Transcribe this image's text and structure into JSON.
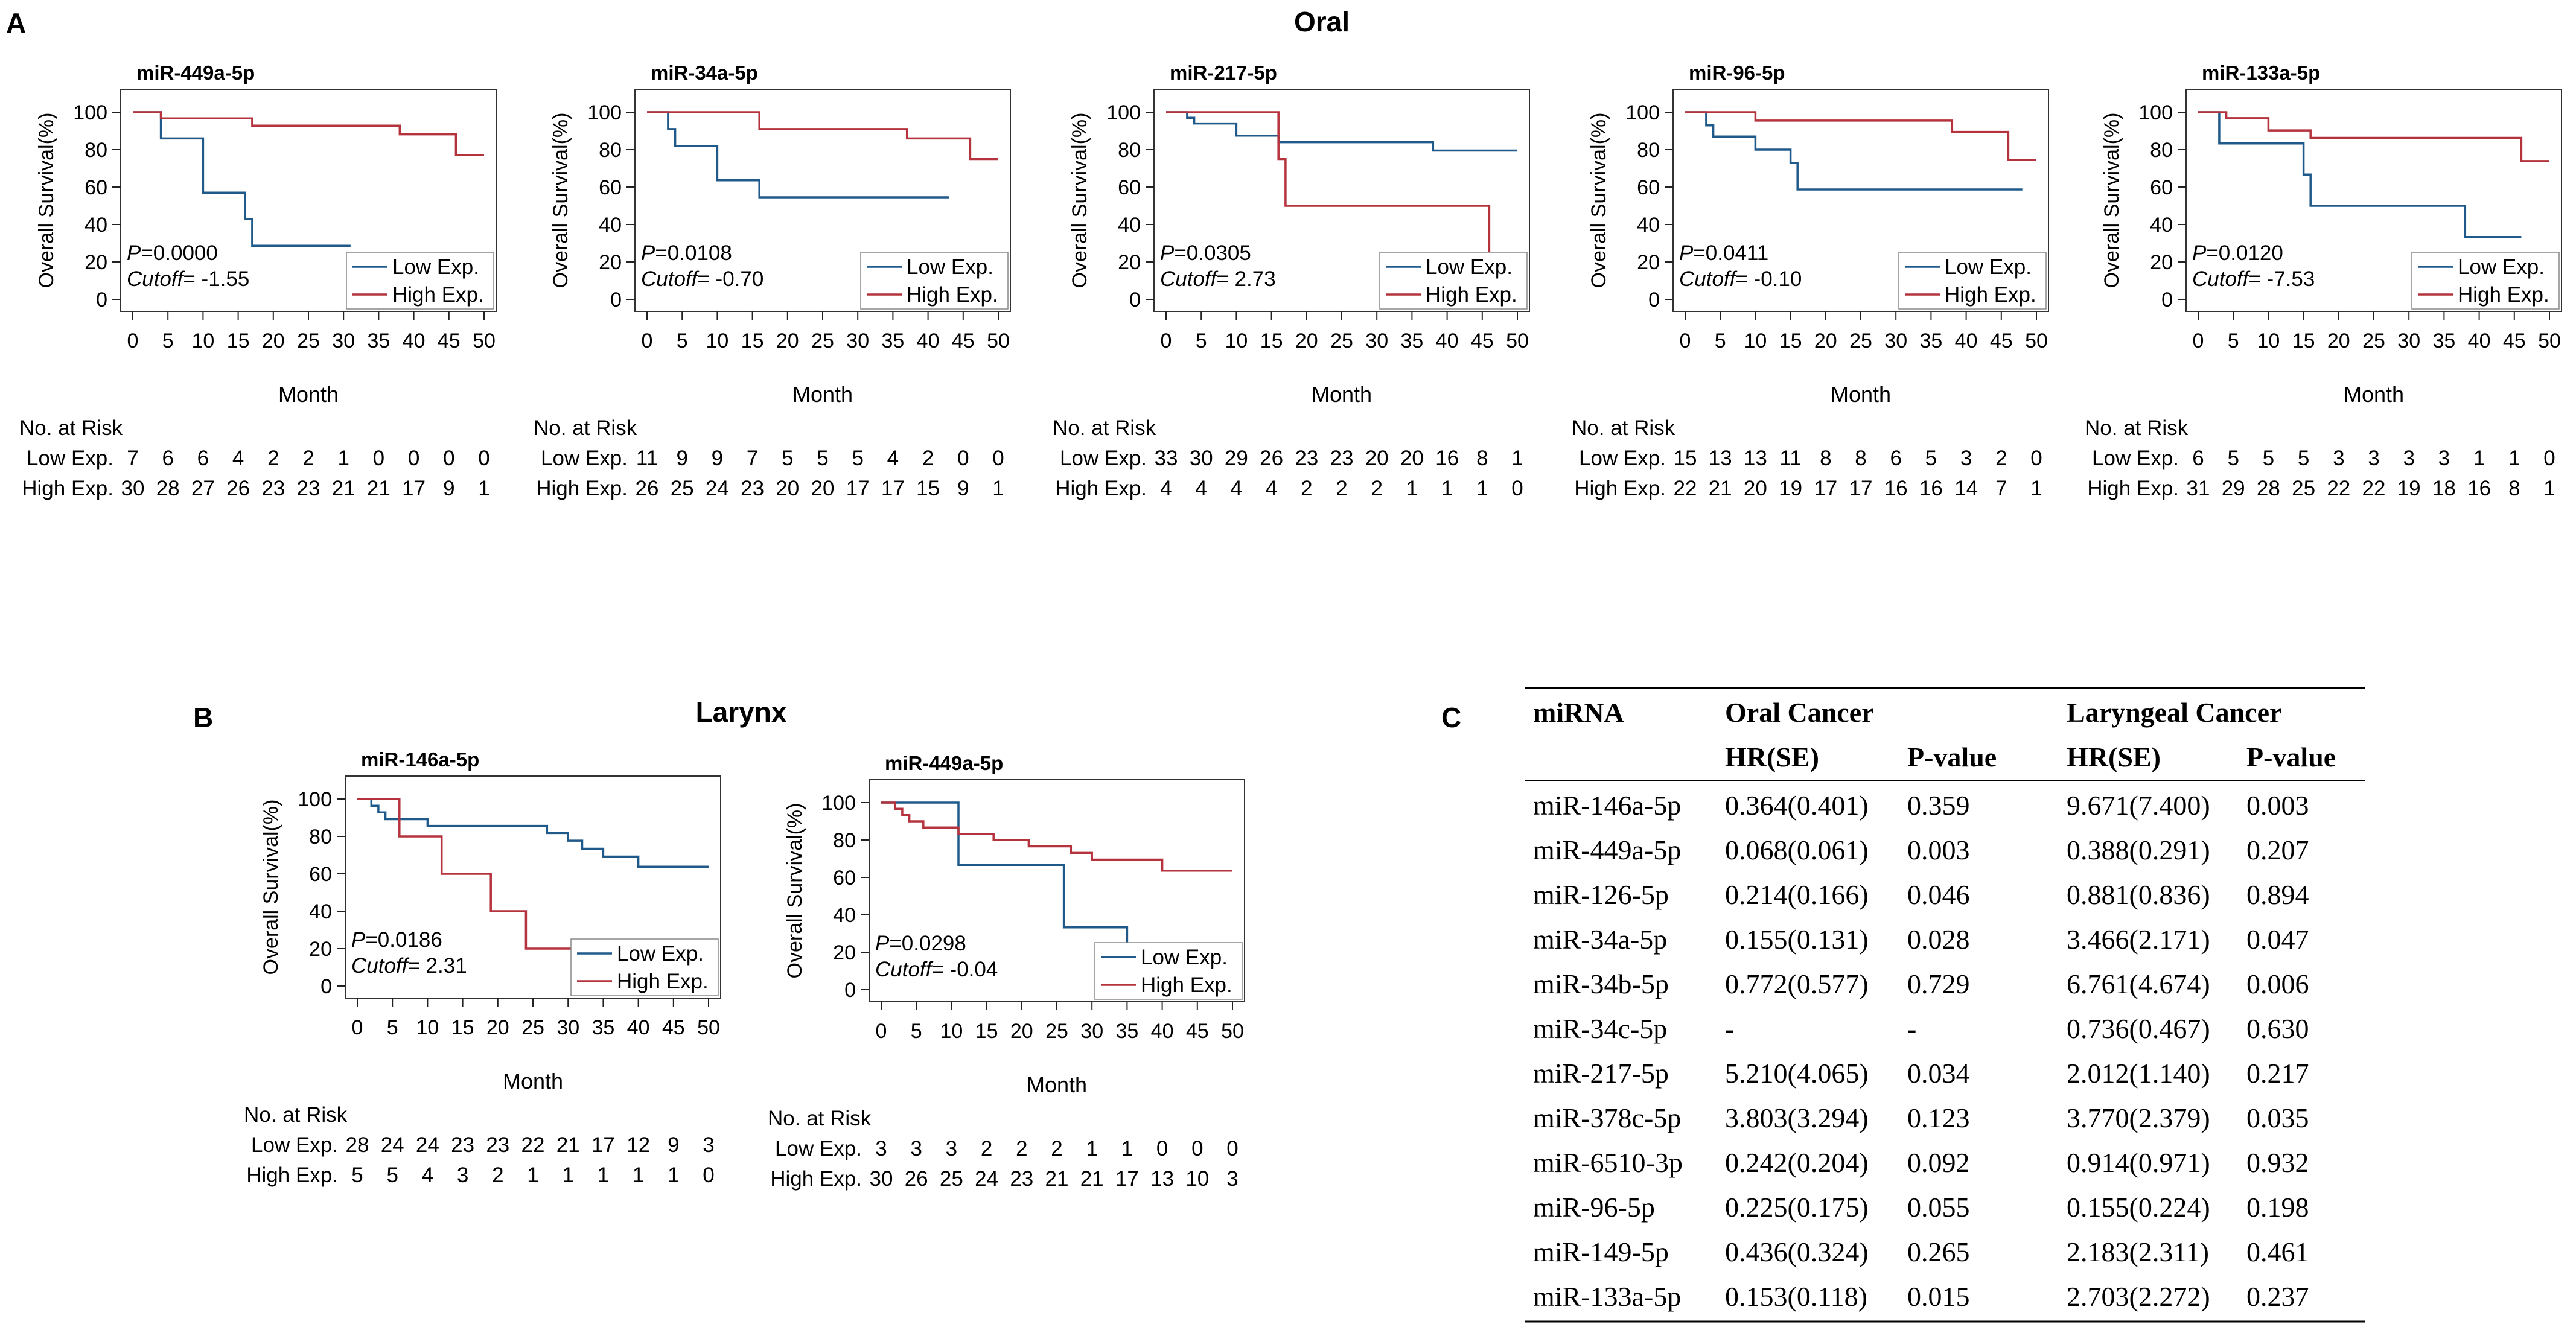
{
  "colors": {
    "low": "#1f5a8a",
    "high": "#b5333d",
    "axis": "#222222",
    "frame": "#333333"
  },
  "panel_labels": {
    "a": "A",
    "b": "B",
    "c": "C"
  },
  "section_titles": {
    "oral": "Oral",
    "larynx": "Larynx"
  },
  "shared": {
    "ylabel": "Overall Survival(%)",
    "xlabel": "Month",
    "risk_title": "No. at Risk",
    "low_label": "Low Exp.",
    "high_label": "High Exp.",
    "p_prefix": "P",
    "cutoff_prefix": "Cutoff",
    "xticks": [
      0,
      5,
      10,
      15,
      20,
      25,
      30,
      35,
      40,
      45,
      50
    ],
    "yticks": [
      0,
      20,
      40,
      60,
      80,
      100
    ]
  },
  "chart_data": [
    {
      "type": "line",
      "group": "oral",
      "title": "miR-449a-5p",
      "p_value": "=0.0000",
      "cutoff": "= -1.55",
      "xlim": [
        0,
        50
      ],
      "ylim": [
        0,
        100
      ],
      "series": [
        {
          "name": "Low Exp.",
          "steps": [
            [
              0,
              100
            ],
            [
              4,
              100
            ],
            [
              4,
              86
            ],
            [
              10,
              86
            ],
            [
              10,
              57
            ],
            [
              16,
              57
            ],
            [
              16,
              43
            ],
            [
              17,
              43
            ],
            [
              17,
              28.6
            ],
            [
              31,
              28.6
            ]
          ]
        },
        {
          "name": "High Exp.",
          "steps": [
            [
              0,
              100
            ],
            [
              4,
              100
            ],
            [
              4,
              96.7
            ],
            [
              17,
              96.7
            ],
            [
              17,
              92.8
            ],
            [
              38,
              92.8
            ],
            [
              38,
              88.2
            ],
            [
              46,
              88.2
            ],
            [
              46,
              77
            ],
            [
              50,
              77
            ]
          ]
        }
      ],
      "risk_low": [
        7,
        6,
        6,
        4,
        2,
        2,
        1,
        0,
        0,
        0,
        0
      ],
      "risk_high": [
        30,
        28,
        27,
        26,
        23,
        23,
        21,
        21,
        17,
        9,
        1
      ]
    },
    {
      "type": "line",
      "group": "oral",
      "title": "miR-34a-5p",
      "p_value": "=0.0108",
      "cutoff": "= -0.70",
      "xlim": [
        0,
        50
      ],
      "ylim": [
        0,
        100
      ],
      "series": [
        {
          "name": "Low Exp.",
          "steps": [
            [
              0,
              100
            ],
            [
              3,
              100
            ],
            [
              3,
              91
            ],
            [
              4,
              91
            ],
            [
              4,
              82
            ],
            [
              10,
              82
            ],
            [
              10,
              63.6
            ],
            [
              16,
              63.6
            ],
            [
              16,
              54.5
            ],
            [
              43,
              54.5
            ]
          ]
        },
        {
          "name": "High Exp.",
          "steps": [
            [
              0,
              100
            ],
            [
              16,
              100
            ],
            [
              16,
              91
            ],
            [
              37,
              91
            ],
            [
              37,
              86
            ],
            [
              46,
              86
            ],
            [
              46,
              75
            ],
            [
              50,
              75
            ]
          ]
        }
      ],
      "risk_low": [
        11,
        9,
        9,
        7,
        5,
        5,
        5,
        4,
        2,
        0,
        0
      ],
      "risk_high": [
        26,
        25,
        24,
        23,
        20,
        20,
        17,
        17,
        15,
        9,
        1
      ]
    },
    {
      "type": "line",
      "group": "oral",
      "title": "miR-217-5p",
      "p_value": "=0.0305",
      "cutoff": "= 2.73",
      "xlim": [
        0,
        50
      ],
      "ylim": [
        0,
        100
      ],
      "series": [
        {
          "name": "Low Exp.",
          "steps": [
            [
              0,
              100
            ],
            [
              3,
              100
            ],
            [
              3,
              97
            ],
            [
              4,
              97
            ],
            [
              4,
              94
            ],
            [
              10,
              94
            ],
            [
              10,
              87.5
            ],
            [
              16,
              87.5
            ],
            [
              16,
              84
            ],
            [
              38,
              84
            ],
            [
              38,
              79.5
            ],
            [
              50,
              79.5
            ]
          ]
        },
        {
          "name": "High Exp.",
          "steps": [
            [
              0,
              100
            ],
            [
              16,
              100
            ],
            [
              16,
              75
            ],
            [
              17,
              75
            ],
            [
              17,
              50
            ],
            [
              46,
              50
            ],
            [
              46,
              15
            ]
          ]
        }
      ],
      "risk_low": [
        33,
        30,
        29,
        26,
        23,
        23,
        20,
        20,
        16,
        8,
        1
      ],
      "risk_high": [
        4,
        4,
        4,
        4,
        2,
        2,
        2,
        1,
        1,
        1,
        0
      ]
    },
    {
      "type": "line",
      "group": "oral",
      "title": "miR-96-5p",
      "p_value": "=0.0411",
      "cutoff": "= -0.10",
      "xlim": [
        0,
        50
      ],
      "ylim": [
        0,
        100
      ],
      "series": [
        {
          "name": "Low Exp.",
          "steps": [
            [
              0,
              100
            ],
            [
              3,
              100
            ],
            [
              3,
              93
            ],
            [
              4,
              93
            ],
            [
              4,
              87
            ],
            [
              10,
              87
            ],
            [
              10,
              80
            ],
            [
              15,
              80
            ],
            [
              15,
              73
            ],
            [
              16,
              73
            ],
            [
              16,
              58.7
            ],
            [
              48,
              58.7
            ]
          ]
        },
        {
          "name": "High Exp.",
          "steps": [
            [
              0,
              100
            ],
            [
              10,
              100
            ],
            [
              10,
              95.5
            ],
            [
              38,
              95.5
            ],
            [
              38,
              89.5
            ],
            [
              46,
              89.5
            ],
            [
              46,
              74.6
            ],
            [
              50,
              74.6
            ]
          ]
        }
      ],
      "risk_low": [
        15,
        13,
        13,
        11,
        8,
        8,
        6,
        5,
        3,
        2,
        0
      ],
      "risk_high": [
        22,
        21,
        20,
        19,
        17,
        17,
        16,
        16,
        14,
        7,
        1
      ]
    },
    {
      "type": "line",
      "group": "oral",
      "title": "miR-133a-5p",
      "p_value": "=0.0120",
      "cutoff": "= -7.53",
      "xlim": [
        0,
        50
      ],
      "ylim": [
        0,
        100
      ],
      "series": [
        {
          "name": "Low Exp.",
          "steps": [
            [
              0,
              100
            ],
            [
              3,
              100
            ],
            [
              3,
              83.3
            ],
            [
              15,
              83.3
            ],
            [
              15,
              66.7
            ],
            [
              16,
              66.7
            ],
            [
              16,
              50
            ],
            [
              38,
              50
            ],
            [
              38,
              33.3
            ],
            [
              46,
              33.3
            ]
          ]
        },
        {
          "name": "High Exp.",
          "steps": [
            [
              0,
              100
            ],
            [
              4,
              100
            ],
            [
              4,
              96.8
            ],
            [
              10,
              96.8
            ],
            [
              10,
              90.3
            ],
            [
              16,
              90.3
            ],
            [
              16,
              86.3
            ],
            [
              46,
              86.3
            ],
            [
              46,
              73.9
            ],
            [
              50,
              73.9
            ]
          ]
        }
      ],
      "risk_low": [
        6,
        5,
        5,
        5,
        3,
        3,
        3,
        3,
        1,
        1,
        0
      ],
      "risk_high": [
        31,
        29,
        28,
        25,
        22,
        22,
        19,
        18,
        16,
        8,
        1
      ]
    },
    {
      "type": "line",
      "group": "larynx",
      "title": "miR-146a-5p",
      "p_value": "=0.0186",
      "cutoff": "= 2.31",
      "xlim": [
        0,
        50
      ],
      "ylim": [
        0,
        100
      ],
      "series": [
        {
          "name": "Low Exp.",
          "steps": [
            [
              0,
              100
            ],
            [
              2,
              100
            ],
            [
              2,
              96.4
            ],
            [
              3,
              96.4
            ],
            [
              3,
              92.8
            ],
            [
              4,
              92.8
            ],
            [
              4,
              89.2
            ],
            [
              10,
              89.2
            ],
            [
              10,
              85.6
            ],
            [
              27,
              85.6
            ],
            [
              27,
              81.8
            ],
            [
              30,
              81.8
            ],
            [
              30,
              77.7
            ],
            [
              32,
              77.7
            ],
            [
              32,
              73.4
            ],
            [
              35,
              73.4
            ],
            [
              35,
              69.2
            ],
            [
              40,
              69.2
            ],
            [
              40,
              63.8
            ],
            [
              50,
              63.8
            ]
          ]
        },
        {
          "name": "High Exp.",
          "steps": [
            [
              0,
              100
            ],
            [
              6,
              100
            ],
            [
              6,
              80
            ],
            [
              12,
              80
            ],
            [
              12,
              60
            ],
            [
              19,
              60
            ],
            [
              19,
              40
            ],
            [
              24,
              40
            ],
            [
              24,
              20
            ],
            [
              46,
              20
            ]
          ]
        }
      ],
      "risk_low": [
        28,
        24,
        24,
        23,
        23,
        22,
        21,
        17,
        12,
        9,
        3
      ],
      "risk_high": [
        5,
        5,
        4,
        3,
        2,
        1,
        1,
        1,
        1,
        1,
        0
      ]
    },
    {
      "type": "line",
      "group": "larynx",
      "title": "miR-449a-5p",
      "p_value": "=0.0298",
      "cutoff": "= -0.04",
      "xlim": [
        0,
        50
      ],
      "ylim": [
        0,
        100
      ],
      "series": [
        {
          "name": "Low Exp.",
          "steps": [
            [
              0,
              100
            ],
            [
              11,
              100
            ],
            [
              11,
              66.7
            ],
            [
              26,
              66.7
            ],
            [
              26,
              33.3
            ],
            [
              35,
              33.3
            ],
            [
              35,
              15
            ]
          ]
        },
        {
          "name": "High Exp.",
          "steps": [
            [
              0,
              100
            ],
            [
              2,
              100
            ],
            [
              2,
              96.7
            ],
            [
              3,
              96.7
            ],
            [
              3,
              93.3
            ],
            [
              4,
              93.3
            ],
            [
              4,
              90
            ],
            [
              6,
              90
            ],
            [
              6,
              86.7
            ],
            [
              11,
              86.7
            ],
            [
              11,
              83.3
            ],
            [
              16,
              83.3
            ],
            [
              16,
              80
            ],
            [
              21,
              80
            ],
            [
              21,
              76.6
            ],
            [
              27,
              76.6
            ],
            [
              27,
              73.1
            ],
            [
              30,
              73.1
            ],
            [
              30,
              69.5
            ],
            [
              40,
              69.5
            ],
            [
              40,
              63.6
            ],
            [
              50,
              63.6
            ]
          ]
        }
      ],
      "risk_low": [
        3,
        3,
        3,
        2,
        2,
        2,
        1,
        1,
        0,
        0,
        0
      ],
      "risk_high": [
        30,
        26,
        25,
        24,
        23,
        21,
        21,
        17,
        13,
        10,
        3
      ]
    }
  ],
  "table": {
    "headers": {
      "mirna": "miRNA",
      "oral": "Oral Cancer",
      "laryngeal": "Laryngeal Cancer",
      "hr": "HR(SE)",
      "p": "P-value"
    },
    "rows": [
      [
        "miR-146a-5p",
        "0.364(0.401)",
        "0.359",
        "9.671(7.400)",
        "0.003"
      ],
      [
        "miR-449a-5p",
        "0.068(0.061)",
        "0.003",
        "0.388(0.291)",
        "0.207"
      ],
      [
        "miR-126-5p",
        "0.214(0.166)",
        "0.046",
        "0.881(0.836)",
        "0.894"
      ],
      [
        "miR-34a-5p",
        "0.155(0.131)",
        "0.028",
        "3.466(2.171)",
        "0.047"
      ],
      [
        "miR-34b-5p",
        "0.772(0.577)",
        "0.729",
        "6.761(4.674)",
        "0.006"
      ],
      [
        "miR-34c-5p",
        "-",
        "-",
        "0.736(0.467)",
        "0.630"
      ],
      [
        "miR-217-5p",
        "5.210(4.065)",
        "0.034",
        "2.012(1.140)",
        "0.217"
      ],
      [
        "miR-378c-5p",
        "3.803(3.294)",
        "0.123",
        "3.770(2.379)",
        "0.035"
      ],
      [
        "miR-6510-3p",
        "0.242(0.204)",
        "0.092",
        "0.914(0.971)",
        "0.932"
      ],
      [
        "miR-96-5p",
        "0.225(0.175)",
        "0.055",
        "0.155(0.224)",
        "0.198"
      ],
      [
        "miR-149-5p",
        "0.436(0.324)",
        "0.265",
        "2.183(2.311)",
        "0.461"
      ],
      [
        "miR-133a-5p",
        "0.153(0.118)",
        "0.015",
        "2.703(2.272)",
        "0.237"
      ]
    ]
  }
}
